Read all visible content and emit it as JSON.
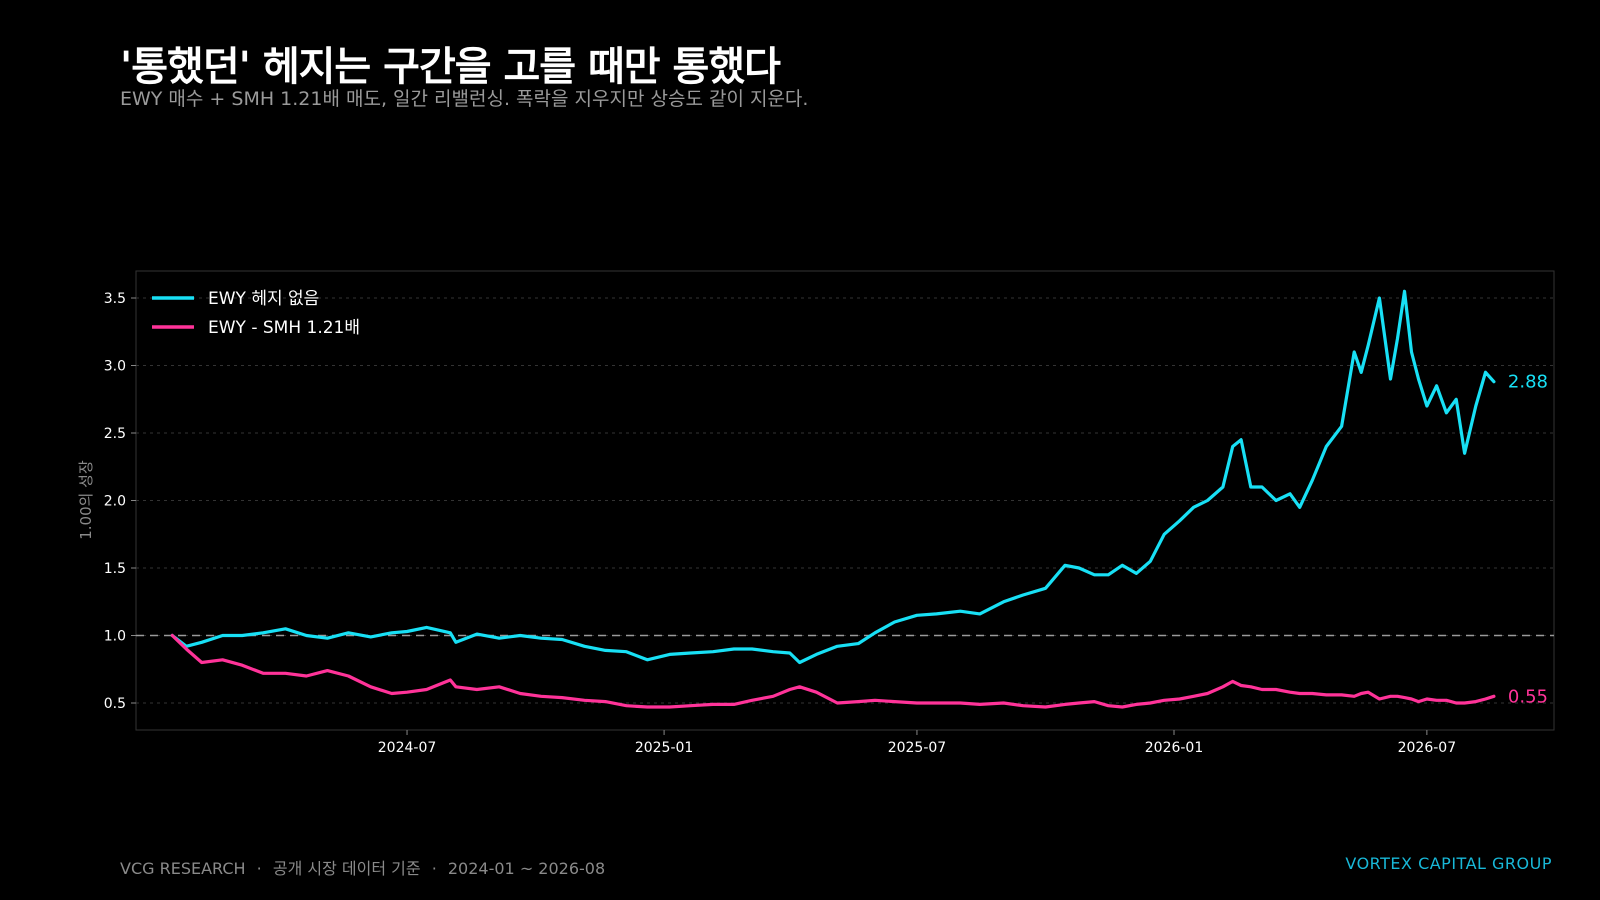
{
  "header": {
    "title": "'통했던' 헤지는 구간을 고를 때만 통했다",
    "subtitle": "EWY 매수 + SMH 1.21배 매도, 일간 리밸런싱. 폭락을 지우지만 상승도 같이 지운다."
  },
  "footer": {
    "source": "VCG RESEARCH",
    "sep1": "·",
    "basis": "공개 시장 데이터 기준",
    "sep2": "·",
    "period": "2024-01 ~ 2026-08",
    "brand": "VORTEX CAPITAL GROUP"
  },
  "colors": {
    "ewy": "#18e0f5",
    "hedge": "#ff3399",
    "background": "#000000",
    "grid": "#444444"
  },
  "chart_data": {
    "type": "line",
    "title": "'통했던' 헤지는 구간을 고를 때만 통했다",
    "subtitle": "EWY 매수 + SMH 1.21배 매도, 일간 리밸런싱. 폭락을 지우지만 상승도 같이 지운다.",
    "xlabel": "",
    "ylabel": "1.00의 성장",
    "ylim": [
      0.3,
      3.7
    ],
    "yticks": [
      0.5,
      1.0,
      1.5,
      2.0,
      2.5,
      3.0,
      3.5
    ],
    "ytick_labels": [
      "0.5",
      "1.0",
      "1.5",
      "2.0",
      "2.5",
      "3.0",
      "3.5"
    ],
    "xlim": [
      "2023-12-20",
      "2026-09-30"
    ],
    "xticks": [
      "2024-07-01",
      "2025-01-01",
      "2025-07-01",
      "2026-01-01",
      "2026-07-01"
    ],
    "xtick_labels": [
      "2024-07",
      "2025-01",
      "2025-07",
      "2026-01",
      "2026-07"
    ],
    "reference_line": 1.0,
    "grid": "horizontal dashed",
    "legend_position": "top-left",
    "series": [
      {
        "name": "EWY 헤지 없음",
        "color": "#18e0f5",
        "end_label": "2.88",
        "x": [
          "2024-01-15",
          "2024-01-25",
          "2024-02-05",
          "2024-02-20",
          "2024-03-05",
          "2024-03-20",
          "2024-04-05",
          "2024-04-20",
          "2024-05-05",
          "2024-05-20",
          "2024-06-05",
          "2024-06-20",
          "2024-07-01",
          "2024-07-15",
          "2024-08-01",
          "2024-08-05",
          "2024-08-20",
          "2024-09-05",
          "2024-09-20",
          "2024-10-05",
          "2024-10-20",
          "2024-11-05",
          "2024-11-20",
          "2024-12-05",
          "2024-12-20",
          "2025-01-05",
          "2025-01-20",
          "2025-02-05",
          "2025-02-20",
          "2025-03-05",
          "2025-03-20",
          "2025-04-01",
          "2025-04-08",
          "2025-04-20",
          "2025-05-05",
          "2025-05-20",
          "2025-06-01",
          "2025-06-15",
          "2025-07-01",
          "2025-07-15",
          "2025-08-01",
          "2025-08-15",
          "2025-09-01",
          "2025-09-15",
          "2025-10-01",
          "2025-10-15",
          "2025-10-25",
          "2025-11-05",
          "2025-11-15",
          "2025-11-25",
          "2025-12-05",
          "2025-12-15",
          "2025-12-25",
          "2026-01-05",
          "2026-01-15",
          "2026-01-25",
          "2026-02-05",
          "2026-02-12",
          "2026-02-18",
          "2026-02-25",
          "2026-03-05",
          "2026-03-15",
          "2026-03-25",
          "2026-04-01",
          "2026-04-10",
          "2026-04-20",
          "2026-05-01",
          "2026-05-10",
          "2026-05-15",
          "2026-05-20",
          "2026-05-28",
          "2026-06-05",
          "2026-06-10",
          "2026-06-15",
          "2026-06-20",
          "2026-06-25",
          "2026-07-01",
          "2026-07-08",
          "2026-07-15",
          "2026-07-22",
          "2026-07-28",
          "2026-08-05",
          "2026-08-12",
          "2026-08-18"
        ],
        "values": [
          1.0,
          0.92,
          0.95,
          1.0,
          1.0,
          1.02,
          1.05,
          1.0,
          0.98,
          1.02,
          0.99,
          1.02,
          1.03,
          1.06,
          1.02,
          0.95,
          1.01,
          0.98,
          1.0,
          0.98,
          0.97,
          0.92,
          0.89,
          0.88,
          0.82,
          0.86,
          0.87,
          0.88,
          0.9,
          0.9,
          0.88,
          0.87,
          0.8,
          0.86,
          0.92,
          0.94,
          1.02,
          1.1,
          1.15,
          1.16,
          1.18,
          1.16,
          1.25,
          1.3,
          1.35,
          1.52,
          1.5,
          1.45,
          1.45,
          1.52,
          1.46,
          1.55,
          1.75,
          1.85,
          1.95,
          2.0,
          2.1,
          2.4,
          2.45,
          2.1,
          2.1,
          2.0,
          2.05,
          1.95,
          2.15,
          2.4,
          2.55,
          3.1,
          2.95,
          3.15,
          3.5,
          2.9,
          3.2,
          3.55,
          3.1,
          2.9,
          2.7,
          2.85,
          2.65,
          2.75,
          2.35,
          2.7,
          2.95,
          2.88
        ]
      },
      {
        "name": "EWY - SMH 1.21배",
        "color": "#ff3399",
        "end_label": "0.55",
        "x": [
          "2024-01-15",
          "2024-01-25",
          "2024-02-05",
          "2024-02-20",
          "2024-03-05",
          "2024-03-20",
          "2024-04-05",
          "2024-04-20",
          "2024-05-05",
          "2024-05-20",
          "2024-06-05",
          "2024-06-20",
          "2024-07-01",
          "2024-07-15",
          "2024-08-01",
          "2024-08-05",
          "2024-08-20",
          "2024-09-05",
          "2024-09-20",
          "2024-10-05",
          "2024-10-20",
          "2024-11-05",
          "2024-11-20",
          "2024-12-05",
          "2024-12-20",
          "2025-01-05",
          "2025-01-20",
          "2025-02-05",
          "2025-02-20",
          "2025-03-05",
          "2025-03-20",
          "2025-04-01",
          "2025-04-08",
          "2025-04-20",
          "2025-05-05",
          "2025-05-20",
          "2025-06-01",
          "2025-06-15",
          "2025-07-01",
          "2025-07-15",
          "2025-08-01",
          "2025-08-15",
          "2025-09-01",
          "2025-09-15",
          "2025-10-01",
          "2025-10-15",
          "2025-10-25",
          "2025-11-05",
          "2025-11-15",
          "2025-11-25",
          "2025-12-05",
          "2025-12-15",
          "2025-12-25",
          "2026-01-05",
          "2026-01-15",
          "2026-01-25",
          "2026-02-05",
          "2026-02-12",
          "2026-02-18",
          "2026-02-25",
          "2026-03-05",
          "2026-03-15",
          "2026-03-25",
          "2026-04-01",
          "2026-04-10",
          "2026-04-20",
          "2026-05-01",
          "2026-05-10",
          "2026-05-15",
          "2026-05-20",
          "2026-05-28",
          "2026-06-05",
          "2026-06-10",
          "2026-06-15",
          "2026-06-20",
          "2026-06-25",
          "2026-07-01",
          "2026-07-08",
          "2026-07-15",
          "2026-07-22",
          "2026-07-28",
          "2026-08-05",
          "2026-08-12",
          "2026-08-18"
        ],
        "values": [
          1.0,
          0.9,
          0.8,
          0.82,
          0.78,
          0.72,
          0.72,
          0.7,
          0.74,
          0.7,
          0.62,
          0.57,
          0.58,
          0.6,
          0.67,
          0.62,
          0.6,
          0.62,
          0.57,
          0.55,
          0.54,
          0.52,
          0.51,
          0.48,
          0.47,
          0.47,
          0.48,
          0.49,
          0.49,
          0.52,
          0.55,
          0.6,
          0.62,
          0.58,
          0.5,
          0.51,
          0.52,
          0.51,
          0.5,
          0.5,
          0.5,
          0.49,
          0.5,
          0.48,
          0.47,
          0.49,
          0.5,
          0.51,
          0.48,
          0.47,
          0.49,
          0.5,
          0.52,
          0.53,
          0.55,
          0.57,
          0.62,
          0.66,
          0.63,
          0.62,
          0.6,
          0.6,
          0.58,
          0.57,
          0.57,
          0.56,
          0.56,
          0.55,
          0.57,
          0.58,
          0.53,
          0.55,
          0.55,
          0.54,
          0.53,
          0.51,
          0.53,
          0.52,
          0.52,
          0.5,
          0.5,
          0.51,
          0.53,
          0.55
        ]
      }
    ]
  }
}
